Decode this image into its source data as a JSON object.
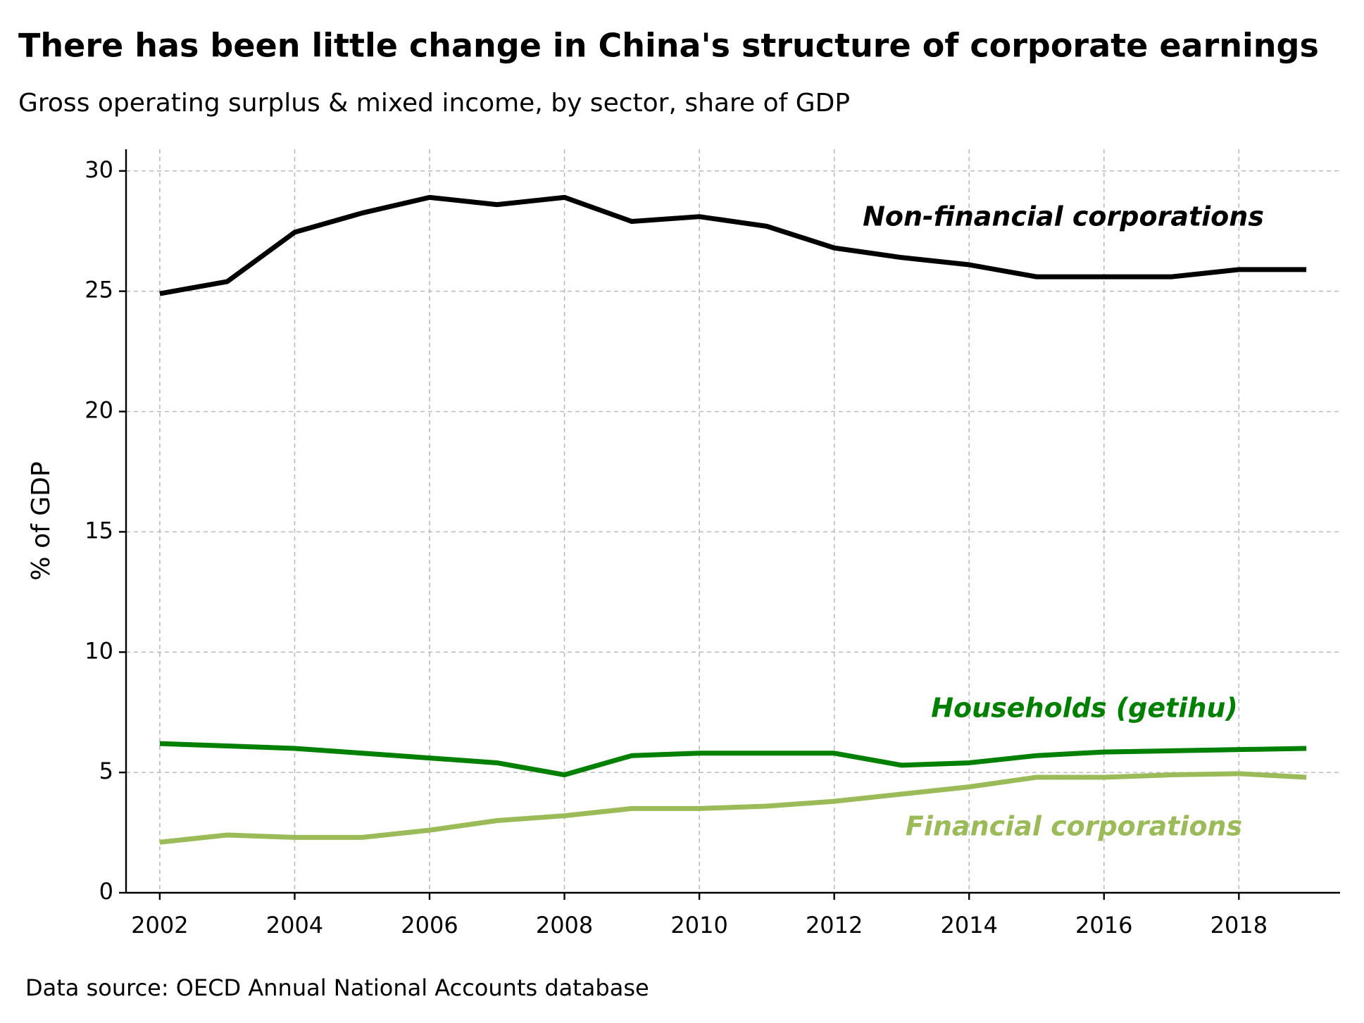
{
  "chart_data": {
    "type": "line",
    "title": "There has been little change in China's structure of corporate earnings",
    "subtitle": "Gross operating surplus & mixed income, by sector, share of GDP",
    "y_label": "% of GDP",
    "source": "Data source: OECD Annual National Accounts database",
    "x": [
      2002,
      2003,
      2004,
      2005,
      2006,
      2007,
      2008,
      2009,
      2010,
      2011,
      2012,
      2013,
      2014,
      2015,
      2016,
      2017,
      2018,
      2019
    ],
    "series": [
      {
        "name": "Non-financial corporations",
        "color": "#000000",
        "values": [
          24.9,
          25.4,
          27.45,
          28.25,
          28.9,
          28.6,
          28.9,
          27.9,
          28.1,
          27.7,
          26.8,
          26.4,
          26.1,
          25.6,
          25.6,
          25.6,
          25.9,
          25.9
        ]
      },
      {
        "name": "Households (getihu)",
        "color": "#008000",
        "values": [
          6.2,
          6.1,
          6.0,
          5.8,
          5.6,
          5.4,
          4.9,
          5.7,
          5.8,
          5.8,
          5.8,
          5.3,
          5.4,
          5.7,
          5.85,
          5.9,
          5.95,
          6.0
        ]
      },
      {
        "name": "Financial corporations",
        "color": "#9bbb59",
        "values": [
          2.1,
          2.4,
          2.3,
          2.3,
          2.6,
          3.0,
          3.2,
          3.5,
          3.5,
          3.6,
          3.8,
          4.1,
          4.4,
          4.8,
          4.8,
          4.9,
          4.95,
          4.8
        ]
      }
    ],
    "xlim": [
      2001.5,
      2019.5
    ],
    "xticks": [
      2002,
      2004,
      2006,
      2008,
      2010,
      2012,
      2014,
      2016,
      2018
    ],
    "ylim": [
      0,
      30.9
    ],
    "yticks": [
      0,
      5,
      10,
      15,
      20,
      25,
      30
    ],
    "grid": true
  }
}
